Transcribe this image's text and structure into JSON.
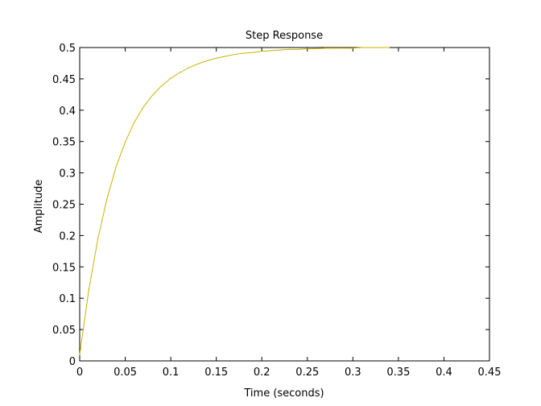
{
  "chart_data": {
    "type": "line",
    "title": "Step Response",
    "xlabel": "Time (seconds)",
    "ylabel": "Amplitude",
    "xlim": [
      0,
      0.45
    ],
    "ylim": [
      0,
      0.5
    ],
    "xticks": [
      "0",
      "0.05",
      "0.1",
      "0.15",
      "0.2",
      "0.25",
      "0.3",
      "0.35",
      "0.4",
      "0.45"
    ],
    "yticks": [
      "0",
      "0.05",
      "0.1",
      "0.15",
      "0.2",
      "0.25",
      "0.3",
      "0.35",
      "0.4",
      "0.45",
      "0.5"
    ],
    "grid": false,
    "legend": "none",
    "series": [
      {
        "color": "#c8b400",
        "x": [
          0,
          0.01,
          0.02,
          0.03,
          0.04,
          0.05,
          0.06,
          0.07,
          0.08,
          0.09,
          0.1,
          0.11,
          0.12,
          0.13,
          0.14,
          0.15,
          0.16,
          0.17,
          0.18,
          0.19,
          0.2,
          0.21,
          0.22,
          0.23,
          0.24,
          0.25,
          0.26,
          0.27,
          0.28,
          0.29,
          0.3,
          0.31,
          0.32,
          0.33,
          0.34
        ],
        "y": [
          0.01,
          0.113,
          0.195,
          0.259,
          0.31,
          0.349,
          0.381,
          0.405,
          0.424,
          0.439,
          0.451,
          0.46,
          0.468,
          0.474,
          0.479,
          0.483,
          0.486,
          0.489,
          0.491,
          0.492,
          0.494,
          0.495,
          0.496,
          0.497,
          0.497,
          0.498,
          0.498,
          0.499,
          0.499,
          0.499,
          0.499,
          0.5,
          0.5,
          0.5,
          0.5
        ]
      }
    ]
  }
}
